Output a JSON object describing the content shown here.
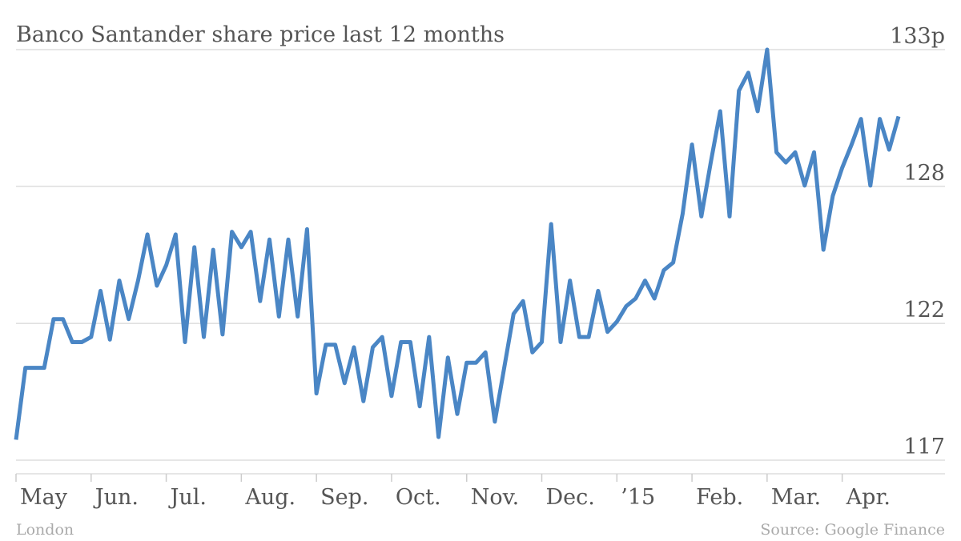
{
  "chart_data": {
    "type": "line",
    "title": "Banco Santander share price last 12 months",
    "note": "London",
    "source": "Source: Google Finance",
    "categories": [
      "May",
      null,
      null,
      null,
      null,
      null,
      null,
      null,
      "Jun.",
      null,
      null,
      null,
      null,
      null,
      null,
      null,
      "Jul.",
      null,
      null,
      null,
      null,
      null,
      null,
      null,
      "Aug.",
      null,
      null,
      null,
      null,
      null,
      null,
      null,
      "Sep.",
      null,
      null,
      null,
      null,
      null,
      null,
      null,
      "Oct.",
      null,
      null,
      null,
      null,
      null,
      null,
      null,
      "Nov.",
      null,
      null,
      null,
      null,
      null,
      null,
      null,
      "Dec.",
      null,
      null,
      null,
      null,
      null,
      null,
      null,
      "’15",
      null,
      null,
      null,
      null,
      null,
      null,
      null,
      "Feb.",
      null,
      null,
      null,
      null,
      null,
      null,
      null,
      "Mar.",
      null,
      null,
      null,
      null,
      null,
      null,
      null,
      "Apr.",
      null,
      null,
      null,
      null,
      null,
      null
    ],
    "series": [
      {
        "name": "Banco Santander",
        "color": "#4a86c5",
        "values": [
          117.8,
          120.6,
          120.6,
          120.6,
          122.5,
          122.5,
          121.6,
          121.6,
          121.8,
          123.6,
          121.7,
          124.0,
          122.5,
          124.0,
          125.8,
          123.8,
          124.6,
          125.8,
          121.6,
          125.3,
          121.8,
          125.2,
          121.9,
          125.9,
          125.3,
          125.9,
          123.2,
          125.6,
          122.6,
          125.6,
          122.6,
          126.0,
          119.6,
          121.5,
          121.5,
          120.0,
          121.4,
          119.3,
          121.4,
          121.8,
          119.5,
          121.6,
          121.6,
          119.1,
          121.8,
          117.9,
          121.0,
          118.8,
          120.8,
          120.8,
          121.2,
          118.5,
          120.6,
          122.7,
          123.2,
          121.2,
          121.6,
          126.2,
          121.6,
          124.0,
          121.8,
          121.8,
          123.6,
          122.0,
          122.4,
          123.0,
          123.3,
          124.0,
          123.3,
          124.4,
          124.7,
          126.6,
          129.3,
          126.5,
          128.6,
          130.6,
          126.5,
          131.4,
          132.1,
          130.6,
          133.0,
          129.0,
          128.6,
          129.0,
          127.7,
          129.0,
          125.2,
          127.3,
          128.4,
          129.3,
          130.3,
          127.7,
          130.3,
          129.1,
          130.4
        ]
      }
    ],
    "ylim": [
      117,
      133
    ],
    "yticks": [
      {
        "value": 117,
        "label": "117"
      },
      {
        "value": 122.33,
        "label": "122"
      },
      {
        "value": 127.67,
        "label": "128"
      },
      {
        "value": 133,
        "label": "133p"
      }
    ],
    "grid": true
  }
}
